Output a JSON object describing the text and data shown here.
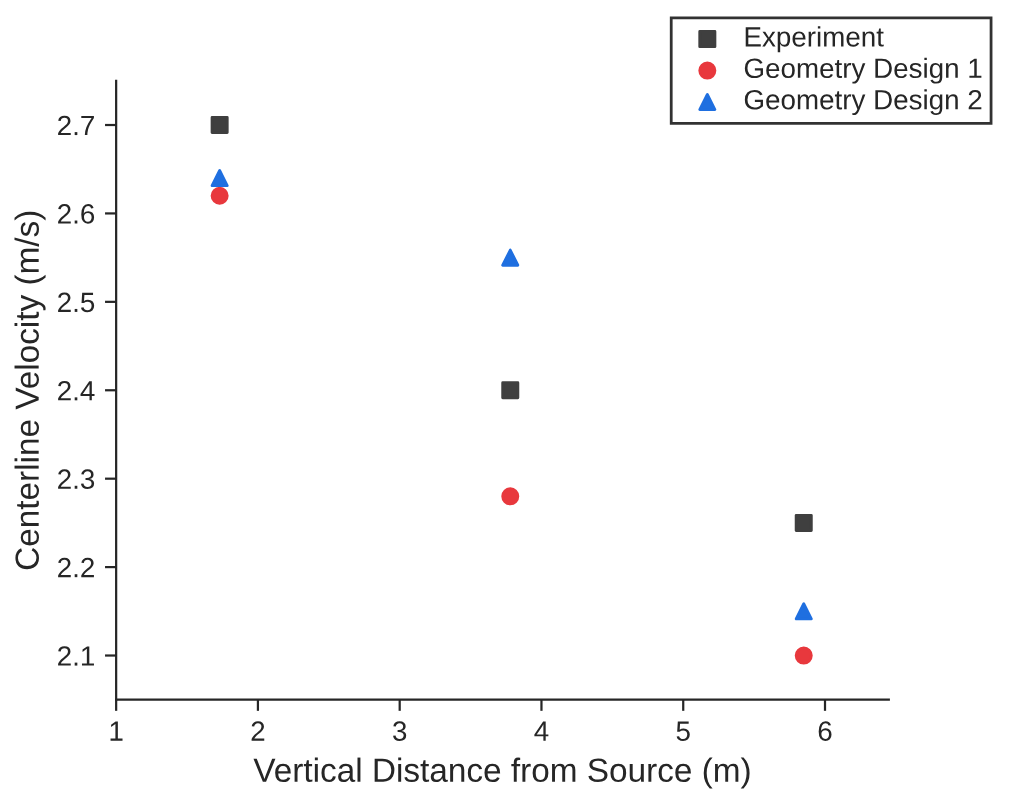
{
  "chart_data": {
    "type": "scatter",
    "xlabel": "Vertical Distance from Source (m)",
    "ylabel": "Centerline Velocity (m/s)",
    "x": [
      1.73,
      3.78,
      5.85
    ],
    "series": [
      {
        "name": "Experiment",
        "color": "#3f3f3f",
        "marker": "square",
        "values": [
          2.7,
          2.4,
          2.25
        ]
      },
      {
        "name": "Geometry Design 1",
        "color": "#e8383d",
        "marker": "circle",
        "values": [
          2.62,
          2.28,
          2.1
        ]
      },
      {
        "name": "Geometry Design 2",
        "color": "#1f6fe0",
        "marker": "triangle",
        "values": [
          2.64,
          2.55,
          2.15
        ]
      }
    ],
    "xlim": [
      1,
      6.45
    ],
    "xticks": [
      1,
      2,
      3,
      4,
      5,
      6
    ],
    "ylim": [
      2.05,
      2.75
    ],
    "yticks": [
      2.1,
      2.2,
      2.3,
      2.4,
      2.5,
      2.6,
      2.7
    ],
    "legend": "top right",
    "grid": false
  }
}
